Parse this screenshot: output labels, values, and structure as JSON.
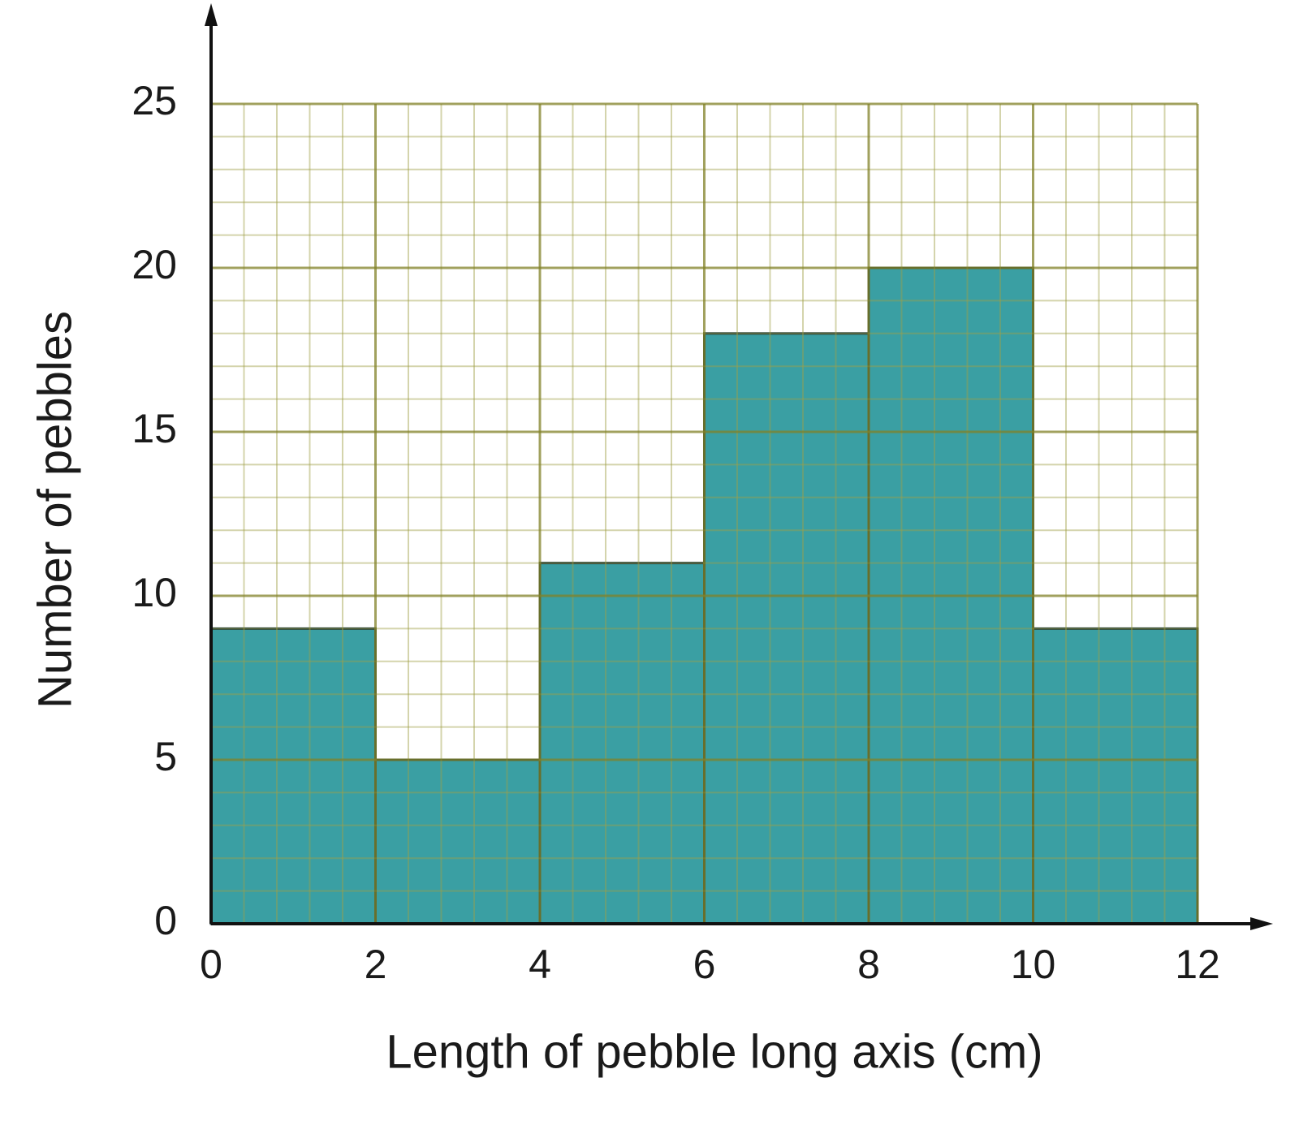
{
  "chart_data": {
    "type": "histogram",
    "x_label": "Length of pebble long axis (cm)",
    "y_label": "Number of pebbles",
    "bins": [
      0,
      2,
      4,
      6,
      8,
      10,
      12
    ],
    "values": [
      9,
      5,
      11,
      18,
      20,
      9
    ],
    "color": "#3a9fa3",
    "xlim": [
      0,
      12
    ],
    "xticks": [
      0,
      2,
      4,
      6,
      8,
      10,
      12
    ],
    "ylim": [
      0,
      25
    ],
    "yticks": [
      0,
      5,
      10,
      15,
      20,
      25
    ],
    "grid": true,
    "minor_grid": true
  }
}
